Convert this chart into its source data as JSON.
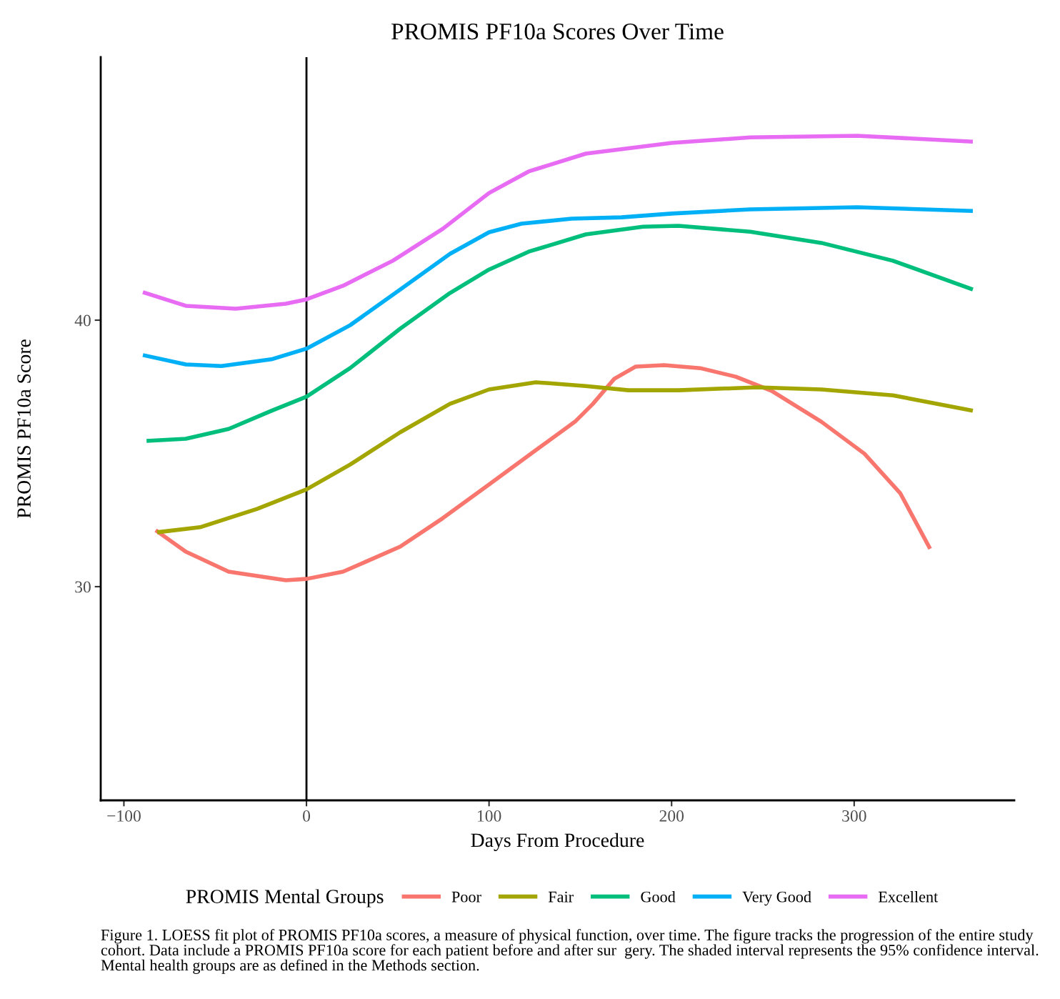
{
  "chart_data": {
    "type": "line",
    "title": "PROMIS PF10a Scores Over Time",
    "xlabel": "Days From Procedure",
    "ylabel": "PROMIS PF10a Score",
    "legend_title": "PROMIS Mental Groups",
    "legend": "bottom",
    "grid": false,
    "marker": "none",
    "line_style": "solid",
    "xlim": [
      -112.7,
      387.7
    ],
    "ylim": [
      21.98,
      49.87
    ],
    "xticks": [
      {
        "value": -100,
        "label": "−100"
      },
      0,
      100,
      200,
      300
    ],
    "yticks": [
      30,
      40
    ],
    "ref_lines": [
      {
        "axis": "x",
        "value": 0,
        "color": "#000000",
        "line_style": "solid"
      }
    ],
    "series": [
      {
        "name": "Poor",
        "color": "#f8766d",
        "x": [
          -82.6,
          -66.1,
          -42.6,
          -11.3,
          0,
          20,
          51.3,
          74.7,
          100,
          125.6,
          147.1,
          156.9,
          168.6,
          180.4,
          196,
          215.6,
          235.1,
          254.7,
          282,
          305.6,
          325.2,
          341.6
        ],
        "values": [
          32.12,
          31.31,
          30.56,
          30.24,
          30.29,
          30.56,
          31.5,
          32.57,
          33.83,
          35.12,
          36.19,
          36.86,
          37.8,
          38.26,
          38.31,
          38.2,
          37.88,
          37.35,
          36.19,
          34.99,
          33.51,
          31.42
        ]
      },
      {
        "name": "Fair",
        "color": "#a3a500",
        "x": [
          -81.8,
          -58.3,
          -27,
          0,
          23.9,
          51.3,
          78.6,
          100,
          125.6,
          153,
          176.4,
          203.8,
          246.9,
          282,
          321.2,
          365
        ],
        "values": [
          32.04,
          32.23,
          32.92,
          33.65,
          34.58,
          35.79,
          36.86,
          37.4,
          37.67,
          37.53,
          37.37,
          37.37,
          37.48,
          37.4,
          37.18,
          36.6
        ]
      },
      {
        "name": "Good",
        "color": "#00bf7d",
        "x": [
          -87.6,
          -66.1,
          -42.6,
          -19.2,
          0,
          23.9,
          51.3,
          78.6,
          100,
          121.7,
          153,
          184.3,
          203.8,
          243,
          282,
          321.2,
          365
        ],
        "values": [
          35.47,
          35.55,
          35.92,
          36.6,
          37.13,
          38.2,
          39.68,
          41.02,
          41.9,
          42.57,
          43.22,
          43.51,
          43.54,
          43.32,
          42.9,
          42.23,
          41.15
        ]
      },
      {
        "name": "Very Good",
        "color": "#00b0f6",
        "x": [
          -89.6,
          -66.1,
          -46.6,
          -19.2,
          0,
          23.9,
          51.3,
          78.6,
          100,
          117.8,
          145.2,
          172.5,
          200,
          243,
          301.6,
          365
        ],
        "values": [
          38.69,
          38.34,
          38.28,
          38.53,
          38.93,
          39.81,
          41.15,
          42.49,
          43.3,
          43.62,
          43.81,
          43.86,
          44.0,
          44.16,
          44.24,
          44.1
        ]
      },
      {
        "name": "Excellent",
        "color": "#e76bf3",
        "x": [
          -89.6,
          -66.1,
          -38.7,
          -11.3,
          0,
          20,
          47.3,
          74.7,
          100,
          121.7,
          153,
          200,
          243,
          301.6,
          365
        ],
        "values": [
          41.05,
          40.54,
          40.43,
          40.62,
          40.78,
          41.29,
          42.23,
          43.43,
          44.77,
          45.58,
          46.25,
          46.65,
          46.86,
          46.92,
          46.7
        ]
      }
    ],
    "annotations": [
      "Figure 1. LOESS fit plot of PROMIS PF10a scores, a measure of physical function, over time. The figure tracks the progression of the entire study cohort. Data include a PROMIS PF10a score for each patient before and after sur  gery. The shaded interval represents the 95% confidence interval. Mental health groups are as defined in the Methods section."
    ]
  }
}
